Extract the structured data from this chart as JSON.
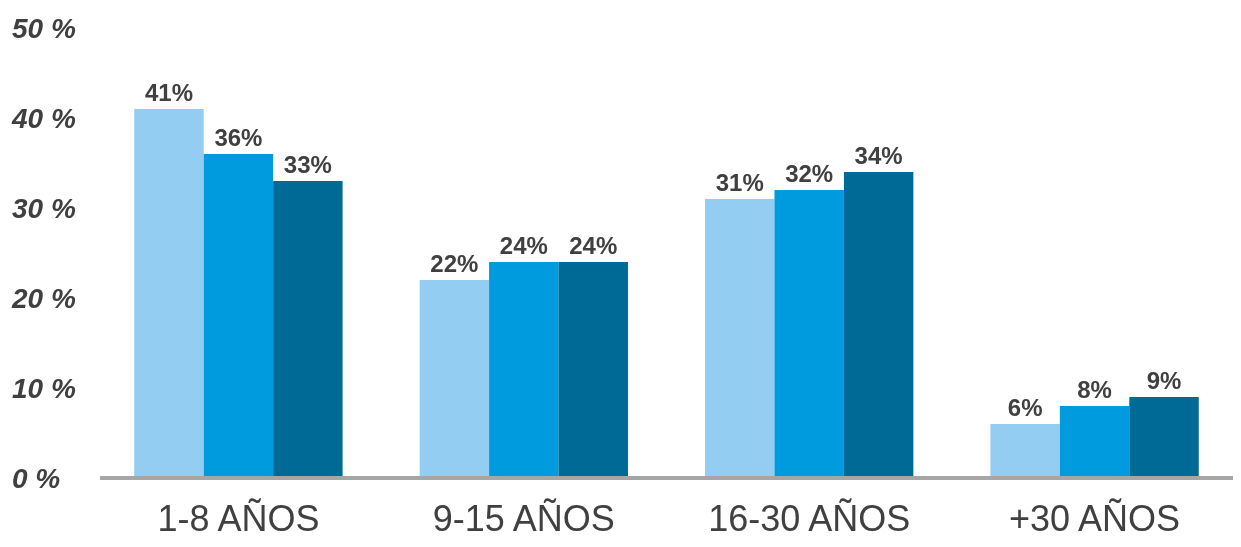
{
  "chart_data": {
    "type": "bar",
    "categories": [
      "1-8 AÑOS",
      "9-15 AÑOS",
      "16-30 AÑOS",
      "+30 AÑOS"
    ],
    "series": [
      {
        "color": "#93cdf1",
        "values": [
          41,
          22,
          31,
          6
        ],
        "value_labels": [
          "41%",
          "22%",
          "31%",
          "6%"
        ]
      },
      {
        "color": "#009bdf",
        "values": [
          36,
          24,
          32,
          8
        ],
        "value_labels": [
          "36%",
          "24%",
          "32%",
          "8%"
        ]
      },
      {
        "color": "#006a96",
        "values": [
          33,
          24,
          34,
          9
        ],
        "value_labels": [
          "33%",
          "24%",
          "34%",
          "9%"
        ]
      }
    ],
    "ylim": [
      0,
      50
    ],
    "yticks": [
      {
        "value": 0,
        "label": "0 %"
      },
      {
        "value": 10,
        "label": "10 %"
      },
      {
        "value": 20,
        "label": "20 %"
      },
      {
        "value": 30,
        "label": "30 %"
      },
      {
        "value": 40,
        "label": "40 %"
      },
      {
        "value": 50,
        "label": "50 %"
      }
    ]
  }
}
